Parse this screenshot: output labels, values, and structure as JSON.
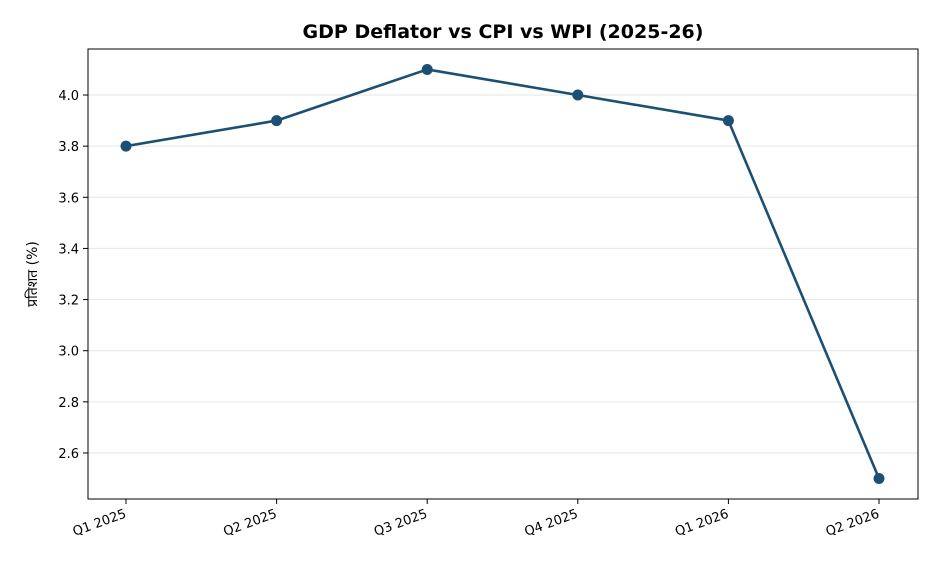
{
  "chart_data": {
    "type": "line",
    "title": "GDP Deflator vs CPI vs WPI (2025-26)",
    "xlabel": "",
    "ylabel": "प्रतिशत (%)",
    "categories": [
      "Q1 2025",
      "Q2 2025",
      "Q3 2025",
      "Q4 2025",
      "Q1 2026",
      "Q2 2026"
    ],
    "series": [
      {
        "values": [
          3.8,
          3.9,
          4.1,
          4.0,
          3.9,
          2.5
        ]
      }
    ],
    "ylim": [
      2.42,
      4.18
    ],
    "yticks": [
      "2.6",
      "2.8",
      "3.0",
      "3.2",
      "3.4",
      "3.6",
      "3.8",
      "4.0"
    ],
    "grid": "y",
    "line_color": "#1b5074",
    "grid_color": "#e6e6e6"
  }
}
